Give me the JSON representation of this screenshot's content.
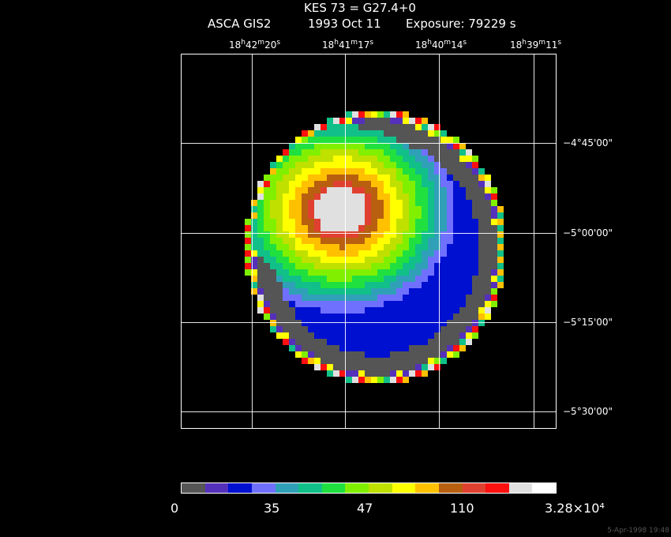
{
  "title": "KES 73 = G27.4+0",
  "subtitle": {
    "instrument": "ASCA GIS2",
    "date": "1993 Oct 11",
    "exposure": "Exposure: 79229 s"
  },
  "ra_ticks": [
    {
      "h": "18",
      "m": "42",
      "s": "20"
    },
    {
      "h": "18",
      "m": "41",
      "s": "17"
    },
    {
      "h": "18",
      "m": "40",
      "s": "14"
    },
    {
      "h": "18",
      "m": "39",
      "s": "11"
    }
  ],
  "dec_ticks": [
    "−4°45'00\"",
    "−5°00'00\"",
    "−5°15'00\"",
    "−5°30'00\""
  ],
  "colorbar": {
    "colors": [
      "#555555",
      "#5530bb",
      "#0010d0",
      "#7070ff",
      "#30a0b8",
      "#10c088",
      "#20e040",
      "#80f000",
      "#c0e000",
      "#ffff00",
      "#ffc000",
      "#b86010",
      "#e04030",
      "#ff1010",
      "#e0e0e0",
      "#ffffff"
    ],
    "labels": [
      "0",
      "35",
      "47",
      "110",
      "3.28×10⁴"
    ]
  },
  "timestamp": "5-Apr-1998 19:48"
}
